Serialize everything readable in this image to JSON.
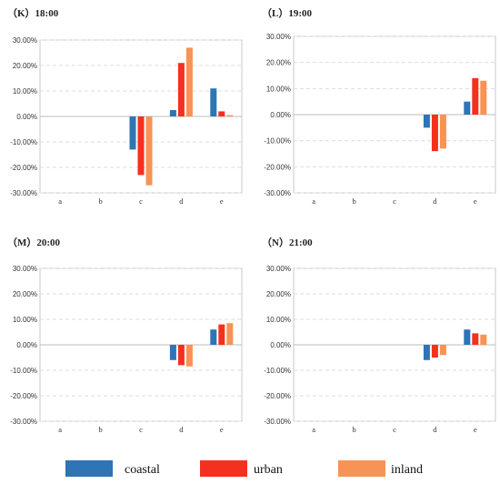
{
  "legend": [
    {
      "label": "coastal",
      "color": "#2E75B6"
    },
    {
      "label": "urban",
      "color": "#F4311E"
    },
    {
      "label": "inland",
      "color": "#F79355"
    }
  ],
  "chart_data": [
    {
      "type": "bar",
      "title": "（K）18:00",
      "categories": [
        "a",
        "b",
        "c",
        "d",
        "e"
      ],
      "ylim": [
        -30,
        30
      ],
      "yticks": [
        "30.00%",
        "20.00%",
        "10.00%",
        "0.00%",
        "-10.00%",
        "-20.00%",
        "-30.00%"
      ],
      "grid": true,
      "series": [
        {
          "name": "coastal",
          "values": [
            0,
            0,
            -13,
            2.5,
            11
          ]
        },
        {
          "name": "urban",
          "values": [
            0,
            0,
            -23,
            21,
            2
          ]
        },
        {
          "name": "inland",
          "values": [
            0,
            0,
            -27,
            27,
            0.5
          ]
        }
      ]
    },
    {
      "type": "bar",
      "title": "（L）19:00",
      "categories": [
        "a",
        "b",
        "c",
        "d",
        "e"
      ],
      "ylim": [
        -30,
        30
      ],
      "yticks": [
        "30.00%",
        "20.00%",
        "10.00%",
        "0.00%",
        "-10.00%",
        "-20.00%",
        "-30.00%"
      ],
      "grid": true,
      "series": [
        {
          "name": "coastal",
          "values": [
            0,
            0,
            0,
            -5,
            5
          ]
        },
        {
          "name": "urban",
          "values": [
            0,
            0,
            0,
            -14,
            14
          ]
        },
        {
          "name": "inland",
          "values": [
            0,
            0,
            0,
            -13,
            13
          ]
        }
      ]
    },
    {
      "type": "bar",
      "title": "（M）20:00",
      "categories": [
        "a",
        "b",
        "c",
        "d",
        "e"
      ],
      "ylim": [
        -30,
        30
      ],
      "yticks": [
        "30.00%",
        "20.00%",
        "10.00%",
        "0.00%",
        "-10.00%",
        "-20.00%",
        "-30.00%"
      ],
      "grid": true,
      "series": [
        {
          "name": "coastal",
          "values": [
            0,
            0,
            0,
            -6,
            6
          ]
        },
        {
          "name": "urban",
          "values": [
            0,
            0,
            0,
            -8,
            8
          ]
        },
        {
          "name": "inland",
          "values": [
            0,
            0,
            0,
            -8.5,
            8.5
          ]
        }
      ]
    },
    {
      "type": "bar",
      "title": "（N）21:00",
      "categories": [
        "a",
        "b",
        "c",
        "d",
        "e"
      ],
      "ylim": [
        -30,
        30
      ],
      "yticks": [
        "30.00%",
        "20.00%",
        "10.00%",
        "0.00%",
        "-10.00%",
        "-20.00%",
        "-30.00%"
      ],
      "grid": true,
      "series": [
        {
          "name": "coastal",
          "values": [
            0,
            0,
            0,
            -6,
            6
          ]
        },
        {
          "name": "urban",
          "values": [
            0,
            0,
            0,
            -5,
            4.5
          ]
        },
        {
          "name": "inland",
          "values": [
            0,
            0,
            0,
            -4,
            4
          ]
        }
      ]
    }
  ]
}
